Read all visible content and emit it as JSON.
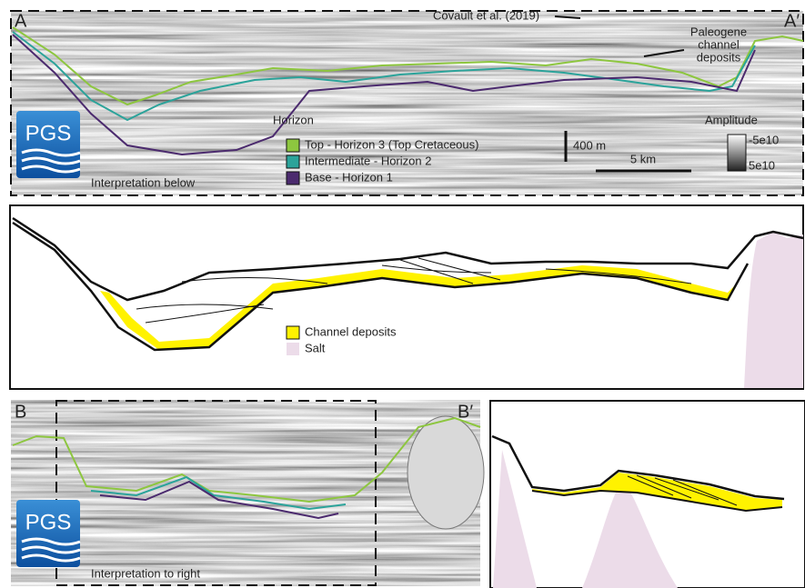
{
  "panel_a": {
    "label_left": "A",
    "label_right": "A′",
    "citation": "Covault et al. (2019)",
    "annotation": [
      "Paleogene",
      "channel",
      "deposits"
    ],
    "legend": {
      "title": "Horizon",
      "items": [
        {
          "label": "Top - Horizon 3 (Top Cretaceous)",
          "color": "#8dc63f"
        },
        {
          "label": "Intermediate - Horizon 2",
          "color": "#2ba39a"
        },
        {
          "label": "Base - Horizon 1",
          "color": "#4b2a6e"
        }
      ]
    },
    "scale_vertical": "400 m",
    "scale_horizontal": "5 km",
    "colorbar": {
      "title": "Amplitude",
      "top_label": "-5e10",
      "bottom_label": "5e10"
    },
    "note": "Interpretation below",
    "logo": "PGS"
  },
  "interpretation_a": {
    "legend": [
      {
        "label": "Channel deposits",
        "color": "#fff200"
      },
      {
        "label": "Salt",
        "color": "#ecdce9"
      }
    ]
  },
  "panel_b": {
    "label_left": "B",
    "label_right": "B′",
    "note": "Interpretation to right",
    "logo": "PGS"
  }
}
